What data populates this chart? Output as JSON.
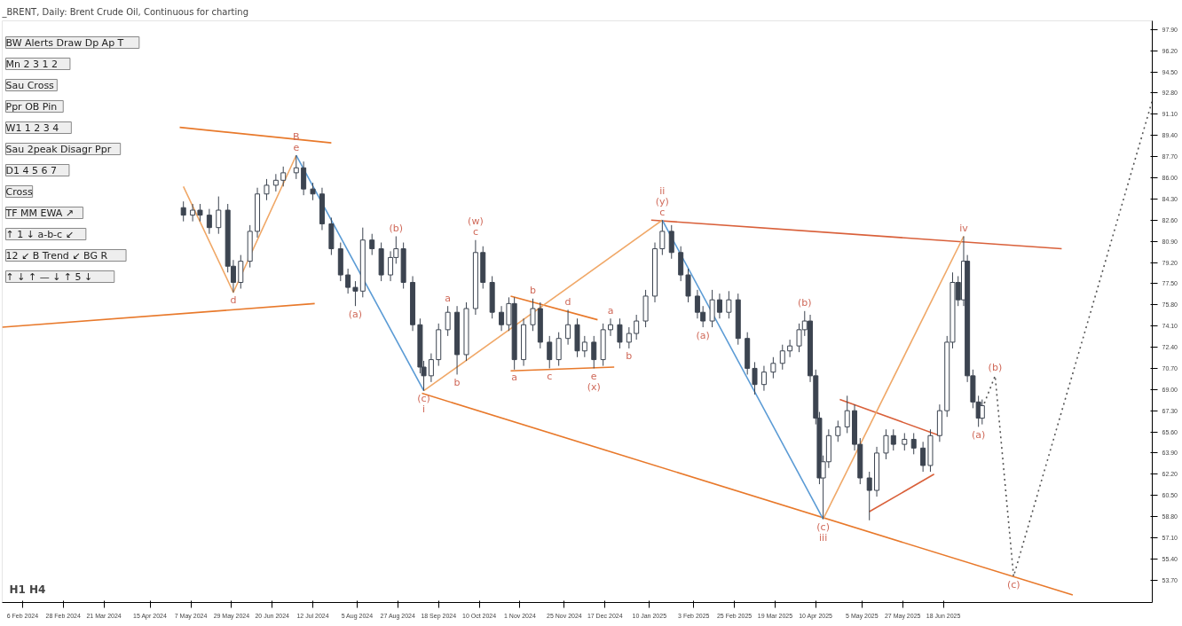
{
  "chart_data": [
    {
      "type": "candlestick",
      "title": "_BRENT, Daily: Brent Crude Oil, Continuous for charting",
      "color": "#3c4450",
      "x": [
        "2024-05-03",
        "2024-05-08",
        "2024-05-12",
        "2024-05-17",
        "2024-05-22",
        "2024-05-27",
        "2024-05-30",
        "2024-06-03",
        "2024-06-08",
        "2024-06-12",
        "2024-06-17",
        "2024-06-22",
        "2024-06-26",
        "2024-07-03",
        "2024-07-07",
        "2024-07-12",
        "2024-07-17",
        "2024-07-22",
        "2024-07-27",
        "2024-07-31",
        "2024-08-04",
        "2024-08-08",
        "2024-08-13",
        "2024-08-18",
        "2024-08-23",
        "2024-08-26",
        "2024-08-30",
        "2024-09-04",
        "2024-09-08",
        "2024-09-10",
        "2024-09-14",
        "2024-09-18",
        "2024-09-23",
        "2024-09-28",
        "2024-10-03",
        "2024-10-08",
        "2024-10-12",
        "2024-10-17",
        "2024-10-22",
        "2024-10-26",
        "2024-10-29",
        "2024-11-03",
        "2024-11-08",
        "2024-11-12",
        "2024-11-17",
        "2024-11-22",
        "2024-11-27",
        "2024-12-02",
        "2024-12-06",
        "2024-12-11",
        "2024-12-16",
        "2024-12-20",
        "2024-12-25",
        "2024-12-30",
        "2025-01-03",
        "2025-01-08",
        "2025-01-13",
        "2025-01-17",
        "2025-01-22",
        "2025-01-27",
        "2025-01-31",
        "2025-02-05",
        "2025-02-08",
        "2025-02-13",
        "2025-02-17",
        "2025-02-22",
        "2025-02-27",
        "2025-03-04",
        "2025-03-08",
        "2025-03-13",
        "2025-03-18",
        "2025-03-23",
        "2025-03-27",
        "2025-04-01",
        "2025-04-04",
        "2025-04-07",
        "2025-04-10",
        "2025-04-12",
        "2025-04-14",
        "2025-04-17",
        "2025-04-22",
        "2025-04-27",
        "2025-05-01",
        "2025-05-04",
        "2025-05-09",
        "2025-05-13",
        "2025-05-18",
        "2025-05-22",
        "2025-05-28",
        "2025-06-02",
        "2025-06-07",
        "2025-06-11",
        "2025-06-16",
        "2025-06-20",
        "2025-06-23",
        "2025-06-26",
        "2025-06-29",
        "2025-07-01",
        "2025-07-04",
        "2025-07-07",
        "2025-07-09"
      ],
      "ohlc": [
        [
          83.6,
          84.1,
          82.5,
          83.0
        ],
        [
          83.0,
          83.9,
          82.5,
          83.4
        ],
        [
          83.4,
          83.9,
          82.5,
          83.0
        ],
        [
          83.0,
          83.5,
          81.5,
          82.0
        ],
        [
          82.0,
          84.5,
          81.5,
          83.4
        ],
        [
          83.4,
          83.9,
          78.4,
          78.9
        ],
        [
          78.9,
          79.4,
          76.8,
          77.6
        ],
        [
          77.6,
          79.8,
          77.1,
          79.3
        ],
        [
          79.3,
          82.2,
          78.8,
          81.7
        ],
        [
          81.7,
          85.2,
          81.2,
          84.7
        ],
        [
          84.7,
          85.9,
          84.2,
          85.4
        ],
        [
          85.4,
          86.3,
          84.9,
          85.8
        ],
        [
          85.8,
          86.9,
          85.3,
          86.4
        ],
        [
          86.4,
          87.8,
          85.9,
          86.8
        ],
        [
          86.8,
          87.3,
          84.6,
          85.1
        ],
        [
          85.1,
          85.6,
          84.2,
          84.7
        ],
        [
          84.7,
          85.2,
          81.8,
          82.3
        ],
        [
          82.3,
          82.8,
          79.8,
          80.3
        ],
        [
          80.3,
          80.8,
          77.7,
          78.2
        ],
        [
          78.2,
          78.7,
          76.7,
          77.2
        ],
        [
          77.2,
          77.7,
          75.7,
          76.9
        ],
        [
          76.9,
          82.0,
          76.4,
          81.0
        ],
        [
          81.0,
          81.5,
          79.8,
          80.3
        ],
        [
          80.3,
          80.8,
          77.7,
          78.2
        ],
        [
          78.2,
          80.1,
          77.7,
          79.6
        ],
        [
          79.6,
          81.3,
          79.1,
          80.3
        ],
        [
          80.3,
          80.8,
          77.1,
          77.6
        ],
        [
          77.6,
          78.1,
          73.7,
          74.2
        ],
        [
          74.2,
          74.7,
          70.3,
          70.8
        ],
        [
          70.8,
          71.3,
          68.9,
          70.1
        ],
        [
          70.1,
          71.9,
          69.6,
          71.4
        ],
        [
          71.4,
          74.3,
          70.9,
          73.8
        ],
        [
          73.8,
          75.7,
          73.3,
          75.2
        ],
        [
          75.2,
          75.7,
          70.2,
          71.8
        ],
        [
          71.8,
          76.0,
          71.3,
          75.5
        ],
        [
          75.5,
          81.0,
          75.0,
          80.0
        ],
        [
          80.0,
          80.5,
          77.1,
          77.6
        ],
        [
          77.6,
          78.1,
          74.7,
          75.2
        ],
        [
          75.2,
          75.7,
          73.7,
          74.2
        ],
        [
          74.2,
          76.4,
          73.7,
          75.9
        ],
        [
          75.9,
          76.4,
          70.6,
          71.4
        ],
        [
          71.4,
          74.7,
          70.9,
          74.2
        ],
        [
          74.2,
          76.3,
          73.7,
          75.5
        ],
        [
          75.5,
          76.0,
          72.3,
          72.8
        ],
        [
          72.8,
          73.3,
          70.7,
          71.4
        ],
        [
          71.4,
          73.6,
          70.9,
          73.1
        ],
        [
          73.1,
          75.4,
          72.6,
          74.2
        ],
        [
          74.2,
          74.7,
          71.6,
          72.1
        ],
        [
          72.1,
          73.3,
          71.6,
          72.8
        ],
        [
          72.8,
          73.3,
          70.7,
          71.4
        ],
        [
          71.4,
          74.3,
          70.9,
          73.8
        ],
        [
          73.8,
          74.7,
          73.3,
          74.2
        ],
        [
          74.2,
          74.7,
          72.3,
          72.8
        ],
        [
          72.8,
          74.0,
          72.3,
          73.5
        ],
        [
          73.5,
          75.0,
          73.0,
          74.5
        ],
        [
          74.5,
          77.0,
          74.0,
          76.5
        ],
        [
          76.5,
          80.8,
          76.0,
          80.3
        ],
        [
          80.3,
          82.6,
          79.8,
          81.7
        ],
        [
          81.7,
          82.2,
          79.5,
          80.0
        ],
        [
          80.0,
          80.5,
          77.7,
          78.2
        ],
        [
          78.2,
          78.7,
          76.0,
          76.5
        ],
        [
          76.5,
          77.0,
          74.7,
          75.2
        ],
        [
          75.2,
          75.7,
          74.0,
          74.5
        ],
        [
          74.5,
          77.0,
          74.0,
          76.2
        ],
        [
          76.2,
          76.7,
          74.7,
          75.2
        ],
        [
          75.2,
          76.9,
          74.7,
          76.2
        ],
        [
          76.2,
          76.7,
          72.6,
          73.1
        ],
        [
          73.1,
          73.6,
          70.2,
          70.7
        ],
        [
          70.7,
          71.2,
          68.6,
          69.4
        ],
        [
          69.4,
          70.9,
          68.9,
          70.4
        ],
        [
          70.4,
          71.6,
          69.9,
          71.1
        ],
        [
          71.1,
          72.6,
          70.6,
          72.1
        ],
        [
          72.1,
          73.0,
          71.6,
          72.5
        ],
        [
          72.5,
          74.3,
          72.0,
          73.8
        ],
        [
          73.8,
          75.3,
          73.3,
          74.5
        ],
        [
          74.5,
          75.0,
          69.6,
          70.1
        ],
        [
          70.1,
          70.6,
          66.2,
          66.7
        ],
        [
          66.7,
          67.2,
          61.4,
          61.9
        ],
        [
          61.9,
          63.7,
          58.6,
          63.2
        ],
        [
          63.2,
          65.8,
          62.7,
          65.3
        ],
        [
          65.3,
          66.5,
          64.8,
          66.0
        ],
        [
          66.0,
          68.5,
          65.5,
          67.3
        ],
        [
          67.3,
          67.8,
          64.1,
          64.6
        ],
        [
          64.6,
          65.1,
          61.4,
          61.9
        ],
        [
          61.9,
          62.4,
          58.5,
          60.9
        ],
        [
          60.9,
          64.4,
          60.4,
          63.9
        ],
        [
          63.9,
          65.8,
          63.4,
          65.3
        ],
        [
          65.3,
          65.8,
          64.1,
          64.6
        ],
        [
          64.6,
          65.5,
          64.1,
          65.0
        ],
        [
          65.0,
          65.5,
          63.8,
          64.3
        ],
        [
          64.3,
          64.8,
          62.4,
          62.9
        ],
        [
          62.9,
          65.8,
          62.4,
          65.3
        ],
        [
          65.3,
          67.8,
          64.8,
          67.3
        ],
        [
          67.3,
          73.3,
          66.8,
          72.8
        ],
        [
          72.8,
          78.4,
          72.3,
          77.6
        ],
        [
          77.6,
          78.1,
          75.7,
          76.2
        ],
        [
          76.2,
          81.3,
          75.7,
          79.3
        ],
        [
          79.3,
          79.8,
          69.6,
          70.1
        ],
        [
          70.1,
          70.6,
          67.5,
          68.0
        ],
        [
          68.0,
          68.5,
          66.0,
          66.7
        ],
        [
          66.7,
          68.2,
          66.2,
          67.7
        ]
      ],
      "series": [
        {
          "type": "line",
          "color": "#e8792b",
          "x": [
            "2024-05-01",
            "2024-07-22"
          ],
          "values": [
            90.05,
            88.8
          ]
        },
        {
          "type": "line",
          "color": "#e8792b",
          "x": [
            "2024-01-26",
            "2024-07-13"
          ],
          "values": [
            74.0,
            75.9
          ]
        },
        {
          "type": "line",
          "color": "#d9603a",
          "x": [
            "2025-01-11",
            "2025-08-21"
          ],
          "values": [
            82.6,
            80.3
          ]
        },
        {
          "type": "line",
          "color": "#e8792b",
          "x": [
            "2024-09-09",
            "2025-08-27"
          ],
          "values": [
            68.7,
            52.5
          ]
        },
        {
          "type": "line",
          "color": "#e8792b",
          "x": [
            "2024-10-27",
            "2024-12-13"
          ],
          "values": [
            76.5,
            74.6
          ]
        },
        {
          "type": "line",
          "color": "#e8792b",
          "x": [
            "2024-10-27",
            "2024-12-22"
          ],
          "values": [
            70.5,
            70.8
          ]
        },
        {
          "type": "line",
          "color": "#d9603a",
          "x": [
            "2025-04-23",
            "2025-06-16"
          ],
          "values": [
            68.2,
            65.3
          ]
        },
        {
          "type": "line",
          "color": "#d9603a",
          "x": [
            "2025-05-09",
            "2025-06-13"
          ],
          "values": [
            59.2,
            62.2
          ]
        },
        {
          "type": "line",
          "color": "#f0a868",
          "x": [
            "2024-05-03",
            "2024-05-30",
            "2024-07-03"
          ],
          "values": [
            85.3,
            76.8,
            87.8
          ]
        },
        {
          "type": "line",
          "color": "#5b9bd5",
          "x": [
            "2024-07-03",
            "2024-09-10"
          ],
          "values": [
            87.8,
            68.9
          ]
        },
        {
          "type": "line",
          "color": "#f0a868",
          "x": [
            "2024-09-10",
            "2025-01-17"
          ],
          "values": [
            68.9,
            82.6
          ]
        },
        {
          "type": "line",
          "color": "#5b9bd5",
          "x": [
            "2025-01-17",
            "2025-04-14"
          ],
          "values": [
            82.6,
            58.6
          ]
        },
        {
          "type": "line",
          "color": "#f0a868",
          "x": [
            "2025-04-14",
            "2025-06-29"
          ],
          "values": [
            58.6,
            81.3
          ]
        },
        {
          "type": "line",
          "color": "#555555",
          "line_style": "dotted",
          "x": [
            "2025-07-07",
            "2025-07-16",
            "2025-07-26",
            "2025-10-09"
          ],
          "values": [
            66.7,
            70.1,
            54.0,
            92.2
          ]
        }
      ],
      "annotations": [
        {
          "text": "e",
          "x": "2024-07-03",
          "y": 87.8
        },
        {
          "text": "B",
          "x": "2024-07-03",
          "y": 87.8
        },
        {
          "text": "d",
          "x": "2024-05-30",
          "y": 76.8
        },
        {
          "text": "(a)",
          "x": "2024-08-04",
          "y": 75.7
        },
        {
          "text": "(b)",
          "x": "2024-08-26",
          "y": 81.3
        },
        {
          "text": "a",
          "x": "2024-09-23",
          "y": 75.7
        },
        {
          "text": "b",
          "x": "2024-09-28",
          "y": 70.2
        },
        {
          "text": "c",
          "x": "2024-10-08",
          "y": 81.0
        },
        {
          "text": "(w)",
          "x": "2024-10-08",
          "y": 81.0
        },
        {
          "text": "(c)",
          "x": "2024-09-10",
          "y": 68.9
        },
        {
          "text": "i",
          "x": "2024-09-10",
          "y": 68.9
        },
        {
          "text": "a",
          "x": "2024-10-29",
          "y": 70.6
        },
        {
          "text": "b",
          "x": "2024-11-08",
          "y": 76.3
        },
        {
          "text": "c",
          "x": "2024-11-17",
          "y": 70.7
        },
        {
          "text": "d",
          "x": "2024-11-27",
          "y": 75.4
        },
        {
          "text": "e",
          "x": "2024-12-11",
          "y": 70.7
        },
        {
          "text": "(x)",
          "x": "2024-12-11",
          "y": 70.7
        },
        {
          "text": "a",
          "x": "2024-12-20",
          "y": 74.7
        },
        {
          "text": "b",
          "x": "2024-12-30",
          "y": 72.3
        },
        {
          "text": "c",
          "x": "2025-01-17",
          "y": 82.6
        },
        {
          "text": "(y)",
          "x": "2025-01-17",
          "y": 82.6
        },
        {
          "text": "ii",
          "x": "2025-01-17",
          "y": 82.6
        },
        {
          "text": "(a)",
          "x": "2025-02-08",
          "y": 74.0
        },
        {
          "text": "(b)",
          "x": "2025-04-04",
          "y": 75.3
        },
        {
          "text": "(c)",
          "x": "2025-04-14",
          "y": 58.6
        },
        {
          "text": "iii",
          "x": "2025-04-14",
          "y": 58.6
        },
        {
          "text": "iv",
          "x": "2025-06-29",
          "y": 81.3
        },
        {
          "text": "(b)",
          "x": "2025-07-16",
          "y": 70.1
        },
        {
          "text": "(a)",
          "x": "2025-07-07",
          "y": 66.0
        },
        {
          "text": "(c)",
          "x": "2025-07-26",
          "y": 54.0
        },
        "H1  H4"
      ],
      "xlim": [
        "2024-01-26",
        "2025-10-09"
      ],
      "ylim": [
        51.9,
        98.6
      ],
      "xticks": [
        {
          "value": "2024-02-06",
          "label": "6 Feb 2024"
        },
        {
          "value": "2024-02-28",
          "label": "28 Feb 2024"
        },
        {
          "value": "2024-03-21",
          "label": "21 Mar 2024"
        },
        {
          "value": "2024-04-15",
          "label": "15 Apr 2024"
        },
        {
          "value": "2024-05-07",
          "label": "7 May 2024"
        },
        {
          "value": "2024-05-29",
          "label": "29 May 2024"
        },
        {
          "value": "2024-06-20",
          "label": "20 Jun 2024"
        },
        {
          "value": "2024-07-12",
          "label": "12 Jul 2024"
        },
        {
          "value": "2024-08-05",
          "label": "5 Aug 2024"
        },
        {
          "value": "2024-08-27",
          "label": "27 Aug 2024"
        },
        {
          "value": "2024-09-18",
          "label": "18 Sep 2024"
        },
        {
          "value": "2024-10-10",
          "label": "10 Oct 2024"
        },
        {
          "value": "2024-11-01",
          "label": "1 Nov 2024"
        },
        {
          "value": "2024-11-25",
          "label": "25 Nov 2024"
        },
        {
          "value": "2024-12-17",
          "label": "17 Dec 2024"
        },
        {
          "value": "2025-01-10",
          "label": "10 Jan 2025"
        },
        {
          "value": "2025-02-03",
          "label": "3 Feb 2025"
        },
        {
          "value": "2025-02-25",
          "label": "25 Feb 2025"
        },
        {
          "value": "2025-03-19",
          "label": "19 Mar 2025"
        },
        {
          "value": "2025-04-10",
          "label": "10 Apr 2025"
        },
        {
          "value": "2025-05-05",
          "label": "5 May 2025"
        },
        {
          "value": "2025-05-27",
          "label": "27 May 2025"
        },
        {
          "value": "2025-06-18",
          "label": "18 Jun 2025"
        }
      ],
      "yticks": [
        {
          "value": 97.9,
          "label": "97.90"
        },
        {
          "value": 96.2,
          "label": "96.20"
        },
        {
          "value": 94.5,
          "label": "94.50"
        },
        {
          "value": 92.8,
          "label": "92.80"
        },
        {
          "value": 91.1,
          "label": "91.10"
        },
        {
          "value": 89.4,
          "label": "89.40"
        },
        {
          "value": 87.7,
          "label": "87.70"
        },
        {
          "value": 86.0,
          "label": "86.00"
        },
        {
          "value": 84.3,
          "label": "84.30"
        },
        {
          "value": 82.6,
          "label": "82.60"
        },
        {
          "value": 80.9,
          "label": "80.90"
        },
        {
          "value": 79.2,
          "label": "79.20"
        },
        {
          "value": 77.5,
          "label": "77.50"
        },
        {
          "value": 75.8,
          "label": "75.80"
        },
        {
          "value": 74.1,
          "label": "74.10"
        },
        {
          "value": 72.4,
          "label": "72.40"
        },
        {
          "value": 70.7,
          "label": "70.70"
        },
        {
          "value": 69.0,
          "label": "69.00"
        },
        {
          "value": 67.3,
          "label": "67.30"
        },
        {
          "value": 65.6,
          "label": "65.60"
        },
        {
          "value": 63.9,
          "label": "63.90"
        },
        {
          "value": 62.2,
          "label": "62.20"
        },
        {
          "value": 60.5,
          "label": "60.50"
        },
        {
          "value": 58.8,
          "label": "58.80"
        },
        {
          "value": 57.1,
          "label": "57.10"
        },
        {
          "value": 55.4,
          "label": "55.40"
        },
        {
          "value": 53.7,
          "label": "53.70"
        }
      ]
    },
    {
      "type": "other",
      "annotations": [
        "BW  Alerts  Draw  Dp  Ap  T",
        "Mn  2  3  1  2",
        "Sau  Cross",
        "Ppr  OB  Pin",
        "W1  1  2  3  4",
        "Sau  2peak  Disagr  Ppr",
        "D1  4  5  6  7",
        "Cross",
        "TF  MM  EWA  ↗",
        "↑  1  ↓  a-b-c  ↙",
        "12  ↙  B  Trend  ↙  BG  R",
        "↑  ↓  ↑  —  ↓  ↑  5  ↓"
      ]
    }
  ]
}
